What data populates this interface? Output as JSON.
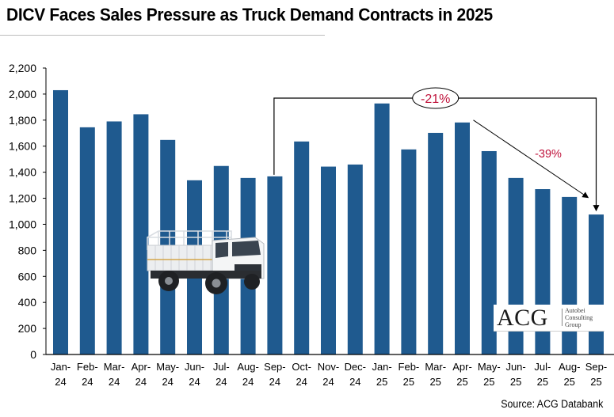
{
  "title": "DICV Faces Sales Pressure as Truck Demand Contracts in 2025",
  "source": "Source: ACG Databank",
  "logo": {
    "mark": "ACG",
    "lines": [
      "Autobei",
      "Consulting",
      "Group"
    ]
  },
  "colors": {
    "bar": "#1F5A8F",
    "annotation_text": "#C0143C",
    "annotation_line": "#000000"
  },
  "chart_data": {
    "type": "bar",
    "title": "DICV Faces Sales Pressure as Truck Demand Contracts in 2025",
    "xlabel": "",
    "ylabel": "",
    "ylim": [
      0,
      2200
    ],
    "yticks": [
      0,
      200,
      400,
      600,
      800,
      1000,
      1200,
      1400,
      1600,
      1800,
      2000,
      2200
    ],
    "ytick_labels": [
      "0",
      "200",
      "400",
      "600",
      "800",
      "1,000",
      "1,200",
      "1,400",
      "1,600",
      "1,800",
      "2,000",
      "2,200"
    ],
    "grid": false,
    "legend": "none",
    "categories": [
      [
        "Jan-",
        "24"
      ],
      [
        "Feb-",
        "24"
      ],
      [
        "Mar-",
        "24"
      ],
      [
        "Apr-",
        "24"
      ],
      [
        "May-",
        "24"
      ],
      [
        "Jun-",
        "24"
      ],
      [
        "Jul-",
        "24"
      ],
      [
        "Aug-",
        "24"
      ],
      [
        "Sep-",
        "24"
      ],
      [
        "Oct-",
        "24"
      ],
      [
        "Nov-",
        "24"
      ],
      [
        "Dec-",
        "24"
      ],
      [
        "Jan-",
        "25"
      ],
      [
        "Feb-",
        "25"
      ],
      [
        "Mar-",
        "25"
      ],
      [
        "Apr-",
        "25"
      ],
      [
        "May-",
        "25"
      ],
      [
        "Jun-",
        "25"
      ],
      [
        "Jul-",
        "25"
      ],
      [
        "Aug-",
        "25"
      ],
      [
        "Sep-",
        "25"
      ]
    ],
    "values": [
      2030,
      1745,
      1790,
      1845,
      1648,
      1338,
      1448,
      1356,
      1368,
      1636,
      1443,
      1459,
      1928,
      1575,
      1702,
      1782,
      1562,
      1356,
      1270,
      1210,
      1075
    ],
    "annotations": [
      {
        "label": "-21%",
        "type": "bracket",
        "from": "Sep-24",
        "to": "Sep-25",
        "style": "ellipse"
      },
      {
        "label": "-39%",
        "type": "arrow",
        "from": "Apr-25",
        "to": "Sep-25"
      }
    ]
  }
}
